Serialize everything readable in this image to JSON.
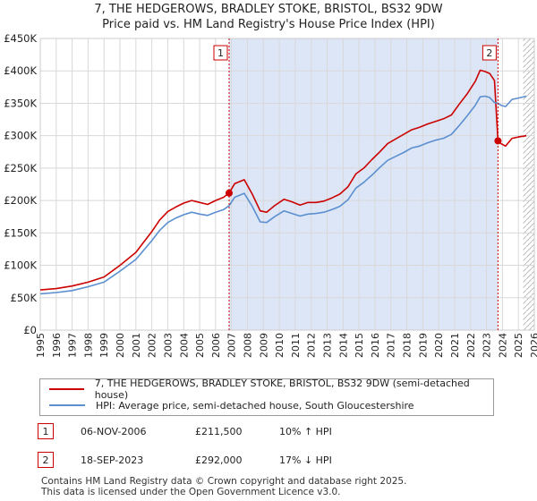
{
  "header": {
    "title": "7, THE HEDGEROWS, BRADLEY STOKE, BRISTOL, BS32 9DW",
    "subtitle": "Price paid vs. HM Land Registry's House Price Index (HPI)"
  },
  "chart_data": {
    "type": "line",
    "title": "7, THE HEDGEROWS, BRADLEY STOKE, BRISTOL, BS32 9DW",
    "subtitle": "Price paid vs. HM Land Registry's House Price Index (HPI)",
    "xlabel": "",
    "ylabel": "",
    "xlim": [
      1995,
      2026
    ],
    "ylim": [
      0,
      450000
    ],
    "x_ticks": [
      "1995",
      "1996",
      "1997",
      "1998",
      "1999",
      "2000",
      "2001",
      "2002",
      "2003",
      "2004",
      "2005",
      "2006",
      "2007",
      "2008",
      "2009",
      "2010",
      "2011",
      "2012",
      "2013",
      "2014",
      "2015",
      "2016",
      "2017",
      "2018",
      "2019",
      "2020",
      "2021",
      "2022",
      "2023",
      "2024",
      "2025",
      "2026"
    ],
    "y_ticks": [
      {
        "value": 0,
        "label": "£0"
      },
      {
        "value": 50000,
        "label": "£50K"
      },
      {
        "value": 100000,
        "label": "£100K"
      },
      {
        "value": 150000,
        "label": "£150K"
      },
      {
        "value": 200000,
        "label": "£200K"
      },
      {
        "value": 250000,
        "label": "£250K"
      },
      {
        "value": 300000,
        "label": "£300K"
      },
      {
        "value": 350000,
        "label": "£350K"
      },
      {
        "value": 400000,
        "label": "£400K"
      },
      {
        "value": 450000,
        "label": "£450K"
      }
    ],
    "grid": true,
    "colors": {
      "property": "#cc0000",
      "hpi": "#5b8fd0",
      "shade": "#dde6f6",
      "grid": "#d8d8d8"
    },
    "shaded_periods": [
      [
        2006.85,
        2023.72
      ]
    ],
    "hatched_from": 2025.3,
    "series": [
      {
        "name": "7, THE HEDGEROWS, BRADLEY STOKE, BRISTOL, BS32 9DW (semi-detached house)",
        "key": "property",
        "x": [
          1995.0,
          1996.0,
          1997.0,
          1998.0,
          1999.0,
          2000.0,
          2001.0,
          2002.0,
          2002.5,
          2003.0,
          2003.5,
          2004.0,
          2004.5,
          2005.0,
          2005.5,
          2006.0,
          2006.5,
          2006.85,
          2007.2,
          2007.8,
          2008.3,
          2008.8,
          2009.2,
          2009.7,
          2010.3,
          2010.8,
          2011.3,
          2011.8,
          2012.3,
          2012.8,
          2013.3,
          2013.8,
          2014.3,
          2014.8,
          2015.3,
          2015.8,
          2016.3,
          2016.8,
          2017.3,
          2017.8,
          2018.3,
          2018.8,
          2019.3,
          2019.8,
          2020.3,
          2020.8,
          2021.3,
          2021.8,
          2022.3,
          2022.6,
          2022.9,
          2023.2,
          2023.5,
          2023.72,
          2023.9,
          2024.2,
          2024.6,
          2025.0,
          2025.5
        ],
        "values": [
          62000,
          64000,
          68000,
          74000,
          82000,
          100000,
          120000,
          152000,
          170000,
          183000,
          190000,
          196000,
          200000,
          197000,
          194000,
          200000,
          205000,
          211500,
          226000,
          232000,
          210000,
          184000,
          182000,
          192000,
          202000,
          198000,
          193000,
          197000,
          197000,
          199000,
          204000,
          210000,
          221000,
          241000,
          250000,
          263000,
          275000,
          288000,
          295000,
          302000,
          309000,
          313000,
          318000,
          322000,
          326000,
          332000,
          349000,
          365000,
          384000,
          401000,
          399000,
          396000,
          385000,
          292000,
          288000,
          284000,
          296000,
          298000,
          300000
        ]
      },
      {
        "name": "HPI: Average price, semi-detached house, South Gloucestershire",
        "key": "hpi",
        "x": [
          1995.0,
          1996.0,
          1997.0,
          1998.0,
          1999.0,
          2000.0,
          2001.0,
          2002.0,
          2002.5,
          2003.0,
          2003.5,
          2004.0,
          2004.5,
          2005.0,
          2005.5,
          2006.0,
          2006.5,
          2006.85,
          2007.2,
          2007.8,
          2008.3,
          2008.8,
          2009.2,
          2009.7,
          2010.3,
          2010.8,
          2011.3,
          2011.8,
          2012.3,
          2012.8,
          2013.3,
          2013.8,
          2014.3,
          2014.8,
          2015.3,
          2015.8,
          2016.3,
          2016.8,
          2017.3,
          2017.8,
          2018.3,
          2018.8,
          2019.3,
          2019.8,
          2020.3,
          2020.8,
          2021.3,
          2021.8,
          2022.3,
          2022.6,
          2022.9,
          2023.2,
          2023.5,
          2023.72,
          2023.9,
          2024.2,
          2024.6,
          2025.0,
          2025.5
        ],
        "values": [
          56000,
          58000,
          61000,
          67000,
          74000,
          91000,
          109000,
          138000,
          154000,
          166000,
          173000,
          178000,
          182000,
          179000,
          177000,
          182000,
          186000,
          192000,
          205000,
          211000,
          191000,
          167000,
          166000,
          175000,
          184000,
          180000,
          176000,
          179000,
          180000,
          182000,
          186000,
          191000,
          201000,
          219000,
          228000,
          239000,
          251000,
          262000,
          268000,
          274000,
          281000,
          284000,
          289000,
          293000,
          296000,
          302000,
          316000,
          331000,
          347000,
          360000,
          361000,
          359000,
          351000,
          350000,
          347000,
          345000,
          356000,
          358000,
          361000
        ]
      }
    ],
    "annotations": [
      {
        "label": "1",
        "x": 2006.85,
        "value": 211500
      },
      {
        "label": "2",
        "x": 2023.72,
        "value": 292000
      }
    ]
  },
  "legend": {
    "property_label": "7, THE HEDGEROWS, BRADLEY STOKE, BRISTOL, BS32 9DW (semi-detached house)",
    "hpi_label": "HPI: Average price, semi-detached house, South Gloucestershire"
  },
  "sales": [
    {
      "marker": "1",
      "date": "06-NOV-2006",
      "price": "£211,500",
      "hpi": "10% ↑ HPI"
    },
    {
      "marker": "2",
      "date": "18-SEP-2023",
      "price": "£292,000",
      "hpi": "17% ↓ HPI"
    }
  ],
  "footer": {
    "line1": "Contains HM Land Registry data © Crown copyright and database right 2025.",
    "line2": "This data is licensed under the Open Government Licence v3.0."
  }
}
